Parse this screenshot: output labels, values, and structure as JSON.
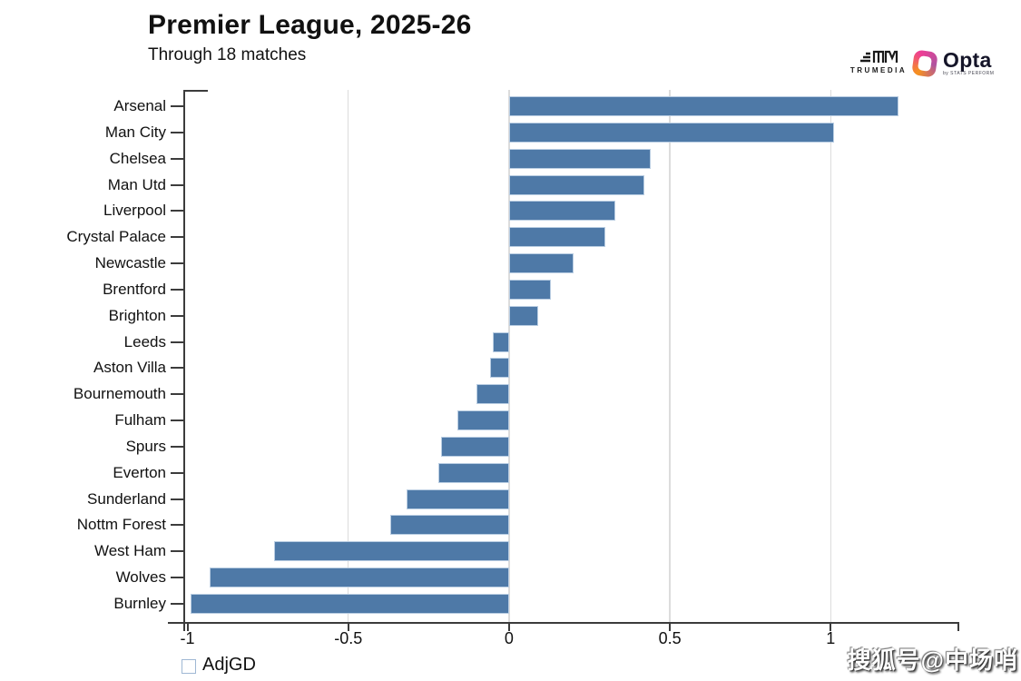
{
  "header": {
    "title": "Premier League, 2025-26",
    "subtitle": "Through 18 matches"
  },
  "branding": {
    "trumedia_label": "TRUMEDIA",
    "opta_label": "Opta",
    "opta_sublabel": "by STATS PERFORM"
  },
  "legend": {
    "label": "AdjGD",
    "color": "#4e79a7"
  },
  "watermark": {
    "text": "搜狐号@中场哨"
  },
  "chart_data": {
    "type": "bar",
    "orientation": "horizontal",
    "title": "Premier League, 2025-26",
    "subtitle": "Through 18 matches",
    "series_name": "AdjGD",
    "categories": [
      "Arsenal",
      "Man City",
      "Chelsea",
      "Man Utd",
      "Liverpool",
      "Crystal Palace",
      "Newcastle",
      "Brentford",
      "Brighton",
      "Leeds",
      "Aston Villa",
      "Bournemouth",
      "Fulham",
      "Spurs",
      "Everton",
      "Sunderland",
      "Nottm Forest",
      "West Ham",
      "Wolves",
      "Burnley"
    ],
    "values": [
      1.21,
      1.01,
      0.44,
      0.42,
      0.33,
      0.3,
      0.2,
      0.13,
      0.09,
      -0.05,
      -0.06,
      -0.1,
      -0.16,
      -0.21,
      -0.22,
      -0.32,
      -0.37,
      -0.73,
      -0.93,
      -0.99
    ],
    "xlim": [
      -1.01,
      1.4
    ],
    "xticks": [
      -1,
      -0.5,
      0,
      0.5,
      1
    ],
    "xtick_labels": [
      "-1",
      "-0.5",
      "0",
      "0.5",
      "1"
    ],
    "grid_values": [
      -0.5,
      0,
      0.5,
      1
    ],
    "grid": true,
    "bar_color": "#4e79a7",
    "bar_border_color": "#b9cde2",
    "legend_position": "bottom-left",
    "ylabel": "",
    "xlabel": ""
  }
}
